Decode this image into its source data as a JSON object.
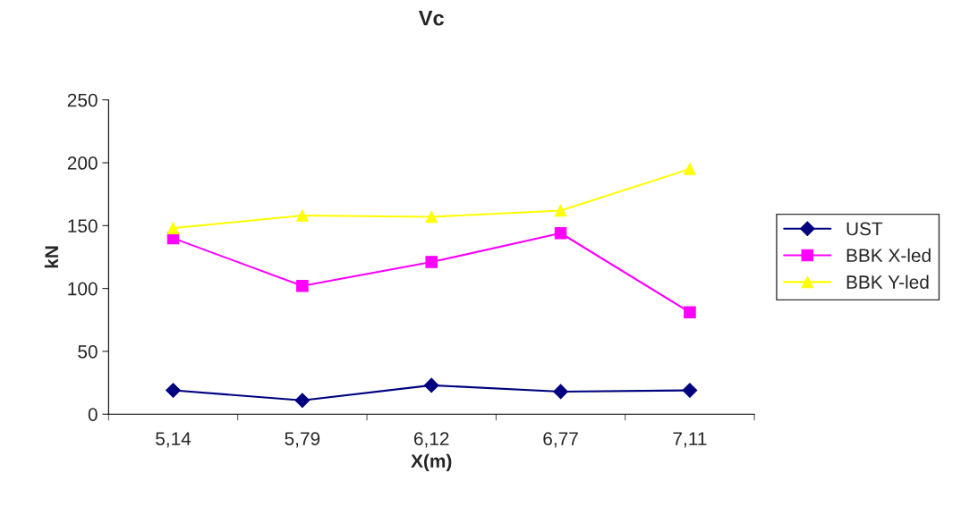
{
  "chart_data": {
    "type": "line",
    "title": "Vc",
    "xlabel": "X(m)",
    "ylabel": "kN",
    "categories": [
      "5,14",
      "5,79",
      "6,12",
      "6,77",
      "7,11"
    ],
    "series": [
      {
        "name": "UST",
        "color": "#000080",
        "marker": "diamond",
        "values": [
          19,
          11,
          23,
          18,
          19
        ]
      },
      {
        "name": "BBK X-led",
        "color": "#ff00ff",
        "marker": "square",
        "values": [
          140,
          102,
          121,
          144,
          81
        ]
      },
      {
        "name": "BBK Y-led",
        "color": "#ffff00",
        "marker": "triangle",
        "values": [
          148,
          158,
          157,
          162,
          195
        ]
      }
    ],
    "ylim": [
      0,
      250
    ],
    "yticks": [
      0,
      50,
      100,
      150,
      200,
      250
    ],
    "grid": false,
    "legend": "right"
  }
}
